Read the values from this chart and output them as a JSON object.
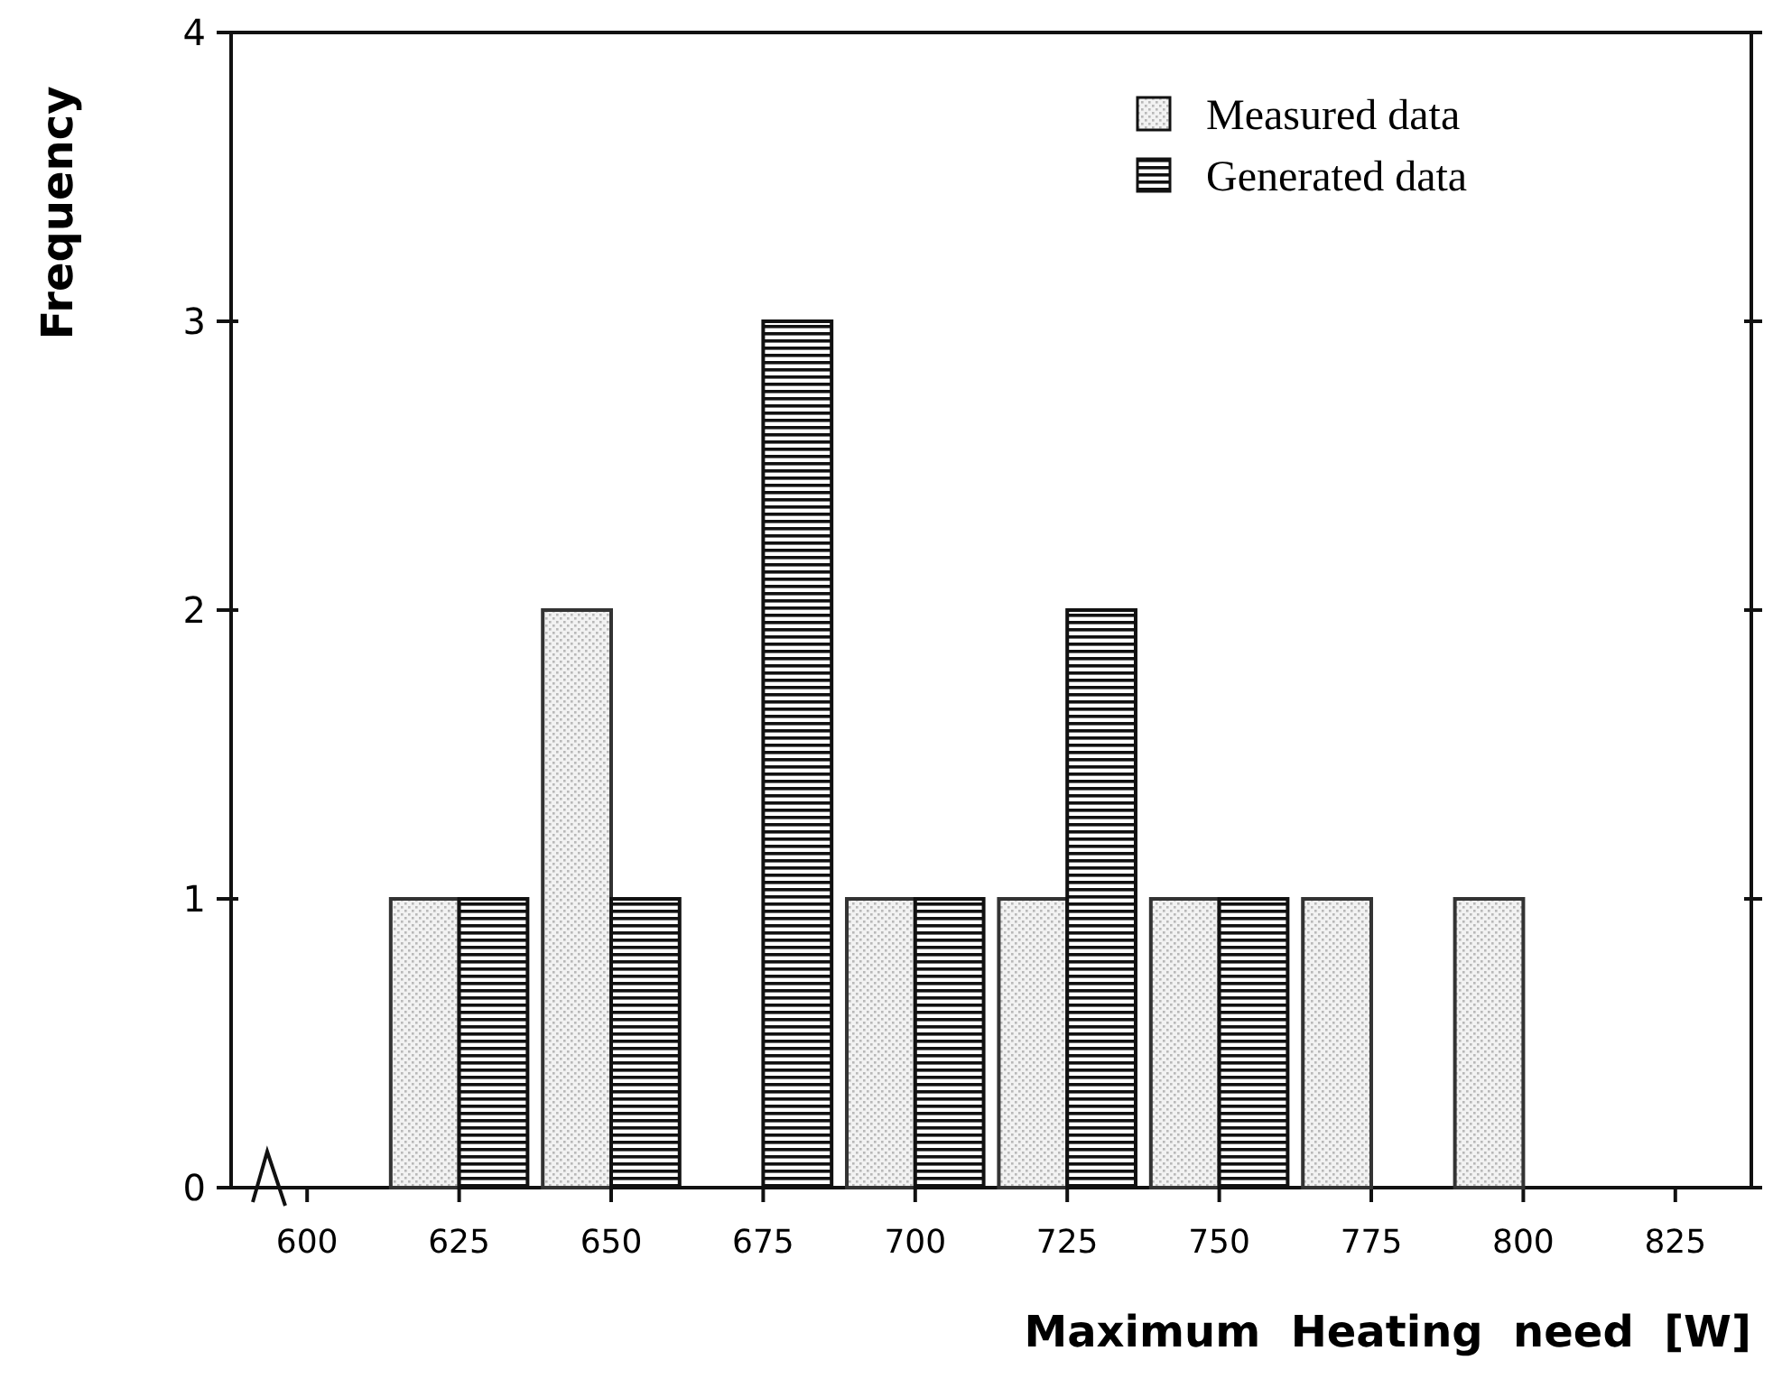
{
  "chart_data": {
    "type": "bar",
    "xlabel": "Maximum  Heating  need  [W]",
    "ylabel": "Frequency",
    "categories": [
      "600",
      "625",
      "650",
      "675",
      "700",
      "725",
      "750",
      "775",
      "800",
      "825"
    ],
    "series": [
      {
        "name": "Measured data",
        "color": "#333333",
        "values": [
          0,
          1,
          2,
          0,
          1,
          1,
          1,
          1,
          1,
          0
        ]
      },
      {
        "name": "Generated data",
        "color": "#111111",
        "values": [
          0,
          1,
          1,
          3,
          1,
          2,
          1,
          0,
          0,
          0
        ]
      }
    ],
    "ylim": [
      0,
      4
    ],
    "yticks": [
      0,
      1,
      2,
      3,
      4
    ],
    "grid": false,
    "legend": "top right"
  }
}
